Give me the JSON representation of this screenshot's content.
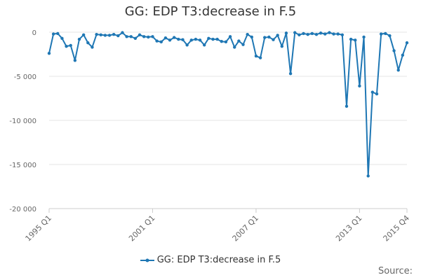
{
  "chart_data": {
    "type": "line",
    "title": "GG: EDP T3:decrease in F.5",
    "xlabel": "",
    "ylabel": "",
    "ylim": [
      -20000,
      0
    ],
    "y_ticks": [
      0,
      -5000,
      -10000,
      -15000,
      -20000
    ],
    "y_tick_labels": [
      "0",
      "-5 000",
      "-10 000",
      "-15 000",
      "-20 000"
    ],
    "x_tick_labels": [
      {
        "label": "1995 Q1",
        "index": 0
      },
      {
        "label": "2001 Q1",
        "index": 24
      },
      {
        "label": "2007 Q1",
        "index": 48
      },
      {
        "label": "2013 Q1",
        "index": 72
      },
      {
        "label": "2015 Q4",
        "index": 83
      }
    ],
    "grid": true,
    "legend_position": "bottom",
    "series": [
      {
        "name": "GG: EDP T3:decrease in F.5",
        "color": "#1f77b4",
        "values": [
          -2400,
          -200,
          -150,
          -700,
          -1600,
          -1500,
          -3200,
          -800,
          -300,
          -1200,
          -1700,
          -250,
          -300,
          -350,
          -350,
          -250,
          -400,
          -50,
          -500,
          -500,
          -700,
          -300,
          -500,
          -550,
          -500,
          -1000,
          -1100,
          -650,
          -900,
          -600,
          -800,
          -850,
          -1450,
          -900,
          -800,
          -900,
          -1450,
          -700,
          -800,
          -800,
          -1050,
          -1100,
          -500,
          -1700,
          -1000,
          -1400,
          -250,
          -550,
          -2700,
          -2900,
          -600,
          -550,
          -850,
          -350,
          -1600,
          -100,
          -4700,
          -50,
          -300,
          -150,
          -250,
          -150,
          -250,
          -100,
          -200,
          -50,
          -200,
          -200,
          -300,
          -8400,
          -800,
          -900,
          -6100,
          -550,
          -16300,
          -6800,
          -7000,
          -200,
          -150,
          -400,
          -2100,
          -4300,
          -2600,
          -1200
        ]
      }
    ]
  },
  "legend": {
    "label": "GG: EDP T3:decrease in F.5"
  },
  "source": {
    "label": "Source:"
  }
}
